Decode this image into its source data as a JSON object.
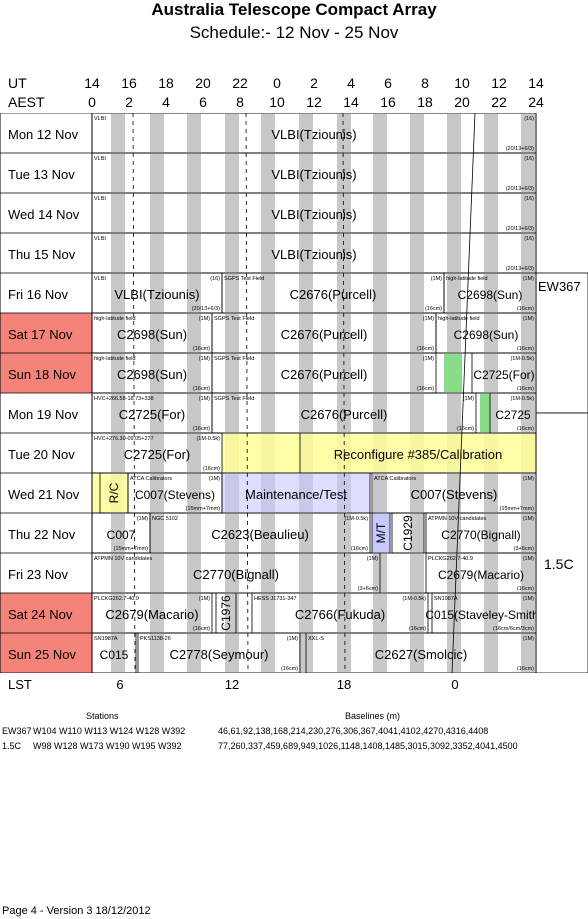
{
  "title": "Australia Telescope Compact Array",
  "subtitle": "Schedule:- 12 Nov - 25 Nov",
  "ut_label": "UT",
  "aest_label": "AEST",
  "ut_ticks": [
    "14",
    "16",
    "18",
    "20",
    "22",
    "0",
    "2",
    "4",
    "6",
    "8",
    "10",
    "12",
    "14"
  ],
  "aest_ticks": [
    "0",
    "2",
    "4",
    "6",
    "8",
    "10",
    "12",
    "14",
    "16",
    "18",
    "20",
    "22",
    "24"
  ],
  "days": [
    {
      "label": "Mon  12 Nov",
      "weekend": false
    },
    {
      "label": "Tue  13 Nov",
      "weekend": false
    },
    {
      "label": "Wed  14 Nov",
      "weekend": false
    },
    {
      "label": "Thu  15 Nov",
      "weekend": false
    },
    {
      "label": "Fri  16 Nov",
      "weekend": false
    },
    {
      "label": "Sat  17 Nov",
      "weekend": true
    },
    {
      "label": "Sun  18 Nov",
      "weekend": true
    },
    {
      "label": "Mon  19 Nov",
      "weekend": false
    },
    {
      "label": "Tue  20 Nov",
      "weekend": false
    },
    {
      "label": "Wed  21 Nov",
      "weekend": false
    },
    {
      "label": "Thu  22 Nov",
      "weekend": false
    },
    {
      "label": "Fri  23 Nov",
      "weekend": false
    },
    {
      "label": "Sat  24 Nov",
      "weekend": true
    },
    {
      "label": "Sun  25 Nov",
      "weekend": true
    }
  ],
  "config_labels": [
    "EW367",
    "1.5C"
  ],
  "lst_label": "LST",
  "lst_ticks": [
    "6",
    "12",
    "18",
    "0"
  ],
  "stations_heading": "Stations",
  "baselines_heading": "Baselines (m)",
  "configs": [
    {
      "name": "EW367",
      "stations": "W104 W110 W113 W124 W128 W392",
      "baselines": "46,61,92,138,168,214,230,276,306,367,4041,4102,4270,4316,4408"
    },
    {
      "name": "1.5C",
      "stations": "W98 W128 W173 W190 W195 W392",
      "baselines": "77,260,337,459,689,949,1026,1148,1408,1485,3015,3092,3352,4041,4500"
    }
  ],
  "footer": "Page 4 - Version 3  18/12/2012",
  "colors": {
    "weekend": "#f4837a",
    "night": "#c8c8c8",
    "reconfig": "#ffff99",
    "maint": "#c8c8ff",
    "green": "#88dd88"
  },
  "blocks": [
    {
      "row": 0,
      "name": "VLBI(Tziounis)",
      "top_left": "VLBI",
      "top_right": "(16)",
      "bottom_right": "(20/13+6/3)"
    },
    {
      "row": 1,
      "name": "VLBI(Tziounis)",
      "top_left": "VLBI",
      "top_right": "(16)",
      "bottom_right": "(20/13+6/3)"
    },
    {
      "row": 2,
      "name": "VLBI(Tziounis)",
      "top_left": "VLBI",
      "top_right": "(16)",
      "bottom_right": "(20/13+6/3)"
    },
    {
      "row": 3,
      "name": "VLBI(Tziounis)",
      "top_left": "VLBI",
      "top_right": "(16)",
      "bottom_right": "(20/13+6/3)"
    },
    {
      "row": 4,
      "name": "VLBI(Tziounis)",
      "top_left": "VLBI",
      "top_right": "(16)",
      "bottom_right": "(20/13+6/3)"
    },
    {
      "row": 4,
      "name": "C2676(Purcell)",
      "top_left": "SGPS Test Field",
      "top_right": "(1M)",
      "bottom_right": "(16cm)"
    },
    {
      "row": 4,
      "name": "C2698(Sun)",
      "top_left": "high-latitude field",
      "top_right": "(1M)",
      "bottom_right": "(16cm)"
    },
    {
      "row": 5,
      "name": "C2698(Sun)",
      "top_left": "high-latitude field",
      "top_right": "(1M)",
      "bottom_right": "(16cm)"
    },
    {
      "row": 5,
      "name": "C2676(Purcell)",
      "top_left": "SGPS Test Field",
      "top_right": "(1M)",
      "bottom_right": "(16cm)"
    },
    {
      "row": 5,
      "name": "C2698(Sun)",
      "top_left": "high-latitude field",
      "top_right": "(1M)",
      "bottom_right": "(16cm)"
    },
    {
      "row": 6,
      "name": "C2698(Sun)",
      "top_left": "high-latitude field",
      "top_right": "(1M)",
      "bottom_right": "(16cm)"
    },
    {
      "row": 6,
      "name": "C2676(Purcell)",
      "top_left": "SGPS Test Field",
      "top_right": "(1M)",
      "bottom_right": "(16cm)"
    },
    {
      "row": 6,
      "name": "C2725(For)",
      "top_left": "",
      "top_right": "(1M-0.5k)",
      "bottom_right": "(16cm)"
    },
    {
      "row": 7,
      "name": "C2725(For)",
      "top_left": "HVC+266.58-18.73+338",
      "top_right": "(1M)",
      "bottom_right": "(16cm)"
    },
    {
      "row": 7,
      "name": "C2676(Purcell)",
      "top_left": "SGPS Test Field",
      "top_right": "(1M)",
      "bottom_right": "(16cm)"
    },
    {
      "row": 7,
      "name": "C2725",
      "top_left": "",
      "top_right": "(1M-0.5k)",
      "bottom_right": "(16cm)"
    },
    {
      "row": 8,
      "name": "C2725(For)",
      "top_left": "HVC+276.30-09.05+277",
      "top_right": "(1M-0.5k)",
      "bottom_right": "(16cm)"
    },
    {
      "row": 8,
      "name": "Reconfigure #385/Calibration",
      "top_left": "",
      "top_right": "",
      "bottom_right": ""
    },
    {
      "row": 9,
      "name": "R/C",
      "top_left": "",
      "top_right": "",
      "bottom_right": ""
    },
    {
      "row": 9,
      "name": "C007(Stevens)",
      "top_left": "ATCA Calibrators",
      "top_right": "(1M)",
      "bottom_right": "(15mm+7mm)"
    },
    {
      "row": 9,
      "name": "Maintenance/Test",
      "top_left": "",
      "top_right": "",
      "bottom_right": ""
    },
    {
      "row": 9,
      "name": "C007(Stevens)",
      "top_left": "ATCA Calibrators",
      "top_right": "(1M)",
      "bottom_right": "(15mm+7mm)"
    },
    {
      "row": 10,
      "name": "C007",
      "top_left": "",
      "top_right": "(1M)",
      "bottom_right": "(15mm+7mm)"
    },
    {
      "row": 10,
      "name": "C2623(Beaulieu)",
      "top_left": "NGC 5102",
      "top_right": "(1M-0.5k)",
      "bottom_right": "(16cm)"
    },
    {
      "row": 10,
      "name": "M/T",
      "top_left": "",
      "top_right": "",
      "bottom_right": ""
    },
    {
      "row": 10,
      "name": "C1929",
      "top_left": "",
      "top_right": "",
      "bottom_right": ""
    },
    {
      "row": 10,
      "name": "C2770(Bignall)",
      "top_left": "ATPMN 10V candidates",
      "top_right": "(1M)",
      "bottom_right": "(3+6cm)"
    },
    {
      "row": 11,
      "name": "C2770(Bignall)",
      "top_left": "ATPMN 10V candidates",
      "top_right": "(1M)",
      "bottom_right": "(3+6cm)"
    },
    {
      "row": 11,
      "name": "C2679(Macario)",
      "top_left": "PLCKG262.7-40.9",
      "top_right": "(1M)",
      "bottom_right": "(16cm)"
    },
    {
      "row": 12,
      "name": "C2679(Macario)",
      "top_left": "PLCKG262.7-40.9",
      "top_right": "(1M)",
      "bottom_right": "(16cm)"
    },
    {
      "row": 12,
      "name": "C1976",
      "top_left": "",
      "top_right": "",
      "bottom_right": ""
    },
    {
      "row": 12,
      "name": "C2766(Fukuda)",
      "top_left": "HESS J1731-347",
      "top_right": "(1M-0.5k)",
      "bottom_right": "(16cm)"
    },
    {
      "row": 12,
      "name": "C015(Staveley-Smith)",
      "top_left": "SN1987A",
      "top_right": "(1M)",
      "bottom_right": "(16cm/6cm/3cm)"
    },
    {
      "row": 13,
      "name": "C015",
      "top_left": "SN1987A",
      "top_right": "",
      "bottom_right": ""
    },
    {
      "row": 13,
      "name": "C2778(Seymour)",
      "top_left": "PKS1138-26",
      "top_right": "(1M)",
      "bottom_right": "(16cm)"
    },
    {
      "row": 13,
      "name": "C2627(Smolcic)",
      "top_left": "XXL-S",
      "top_right": "(1M)",
      "bottom_right": "(16cm)"
    }
  ]
}
